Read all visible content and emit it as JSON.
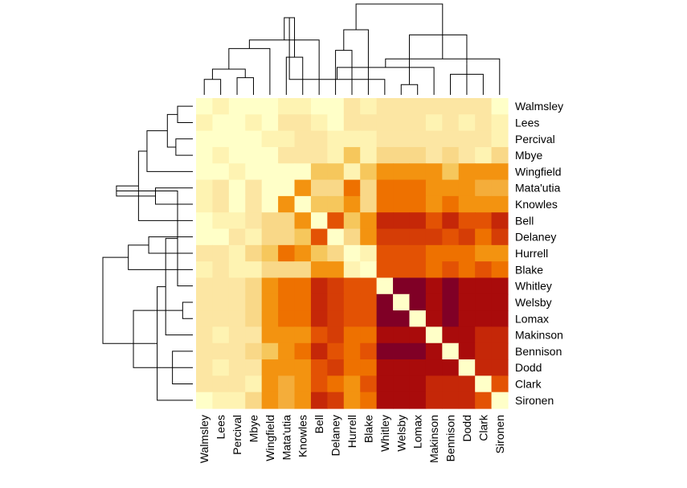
{
  "chart_data": {
    "type": "heatmap",
    "title": "",
    "xlabel": "",
    "ylabel": "",
    "labels": [
      "Walmsley",
      "Lees",
      "Percival",
      "Mbye",
      "Wingfield",
      "Mata'utia",
      "Knowles",
      "Bell",
      "Delaney",
      "Hurrell",
      "Blake",
      "Whitley",
      "Welsby",
      "Lomax",
      "Makinson",
      "Bennison",
      "Dodd",
      "Clark",
      "Sironen"
    ],
    "color_scale": [
      "#FFFFC8",
      "#FEF3B2",
      "#FCE6A3",
      "#F9D888",
      "#F6C75C",
      "#F4AD3A",
      "#F39310",
      "#EE7100",
      "#E35204",
      "#D53D06",
      "#C52708",
      "#A90B0B",
      "#800026"
    ],
    "values": [
      [
        0,
        1,
        0,
        0,
        0,
        1,
        1,
        0,
        0,
        2,
        1,
        2,
        2,
        2,
        2,
        2,
        2,
        2,
        0
      ],
      [
        1,
        0,
        0,
        1,
        0,
        2,
        2,
        1,
        0,
        2,
        2,
        2,
        2,
        2,
        1,
        2,
        1,
        2,
        1
      ],
      [
        0,
        0,
        0,
        0,
        1,
        1,
        2,
        2,
        1,
        1,
        1,
        2,
        2,
        2,
        2,
        2,
        2,
        2,
        1
      ],
      [
        0,
        1,
        0,
        0,
        0,
        2,
        2,
        2,
        1,
        4,
        1,
        3,
        3,
        3,
        2,
        3,
        2,
        1,
        3
      ],
      [
        0,
        0,
        1,
        0,
        0,
        0,
        0,
        4,
        4,
        1,
        4,
        6,
        6,
        6,
        6,
        4,
        6,
        6,
        6
      ],
      [
        1,
        2,
        0,
        2,
        0,
        0,
        6,
        3,
        3,
        7,
        3,
        7,
        7,
        7,
        6,
        6,
        6,
        5,
        5
      ],
      [
        1,
        2,
        0,
        2,
        0,
        6,
        0,
        4,
        4,
        6,
        3,
        7,
        7,
        7,
        6,
        7,
        6,
        6,
        6
      ],
      [
        0,
        1,
        1,
        2,
        3,
        3,
        6,
        0,
        8,
        4,
        6,
        10,
        10,
        10,
        8,
        10,
        8,
        8,
        10
      ],
      [
        0,
        0,
        2,
        1,
        3,
        3,
        4,
        8,
        0,
        3,
        6,
        9,
        9,
        9,
        9,
        8,
        9,
        7,
        9
      ],
      [
        2,
        2,
        1,
        3,
        4,
        7,
        6,
        4,
        3,
        0,
        1,
        8,
        8,
        8,
        7,
        7,
        7,
        6,
        6
      ],
      [
        1,
        2,
        1,
        1,
        3,
        3,
        3,
        6,
        6,
        1,
        0,
        8,
        8,
        8,
        7,
        8,
        7,
        8,
        7
      ],
      [
        2,
        2,
        2,
        3,
        6,
        7,
        7,
        10,
        9,
        8,
        8,
        0,
        12,
        12,
        11,
        12,
        11,
        11,
        11
      ],
      [
        2,
        2,
        2,
        3,
        6,
        7,
        7,
        10,
        9,
        8,
        8,
        12,
        0,
        12,
        11,
        12,
        11,
        11,
        11
      ],
      [
        2,
        2,
        2,
        3,
        6,
        7,
        7,
        10,
        9,
        8,
        8,
        12,
        12,
        0,
        11,
        12,
        11,
        11,
        11
      ],
      [
        2,
        1,
        2,
        2,
        6,
        6,
        6,
        8,
        9,
        7,
        7,
        11,
        11,
        11,
        0,
        11,
        11,
        10,
        10
      ],
      [
        2,
        2,
        2,
        3,
        4,
        6,
        7,
        10,
        8,
        7,
        8,
        12,
        12,
        12,
        11,
        0,
        11,
        10,
        10
      ],
      [
        2,
        1,
        2,
        2,
        6,
        6,
        6,
        8,
        9,
        7,
        7,
        11,
        11,
        11,
        11,
        11,
        0,
        10,
        10
      ],
      [
        2,
        2,
        2,
        1,
        6,
        5,
        6,
        8,
        7,
        6,
        8,
        11,
        11,
        11,
        10,
        10,
        10,
        0,
        8
      ],
      [
        0,
        1,
        1,
        3,
        6,
        5,
        6,
        10,
        9,
        6,
        7,
        11,
        11,
        11,
        10,
        10,
        10,
        8,
        0
      ]
    ],
    "dendrogram_merges": [
      [
        0,
        1,
        0.9
      ],
      [
        2,
        3,
        1.0
      ],
      [
        19,
        20,
        1.5
      ],
      [
        5,
        6,
        2.2
      ],
      [
        4,
        21,
        2.7
      ],
      [
        8,
        9,
        2.6
      ],
      [
        7,
        23,
        3.2
      ],
      [
        10,
        24,
        3.8
      ],
      [
        22,
        25,
        4.5
      ],
      [
        12,
        13,
        0.6
      ],
      [
        11,
        27,
        0.9
      ],
      [
        15,
        17,
        1.2
      ],
      [
        14,
        29,
        1.6
      ],
      [
        16,
        30,
        1.8
      ],
      [
        18,
        31,
        2.1
      ],
      [
        28,
        32,
        3.5
      ],
      [
        26,
        33,
        5.3
      ]
    ]
  }
}
